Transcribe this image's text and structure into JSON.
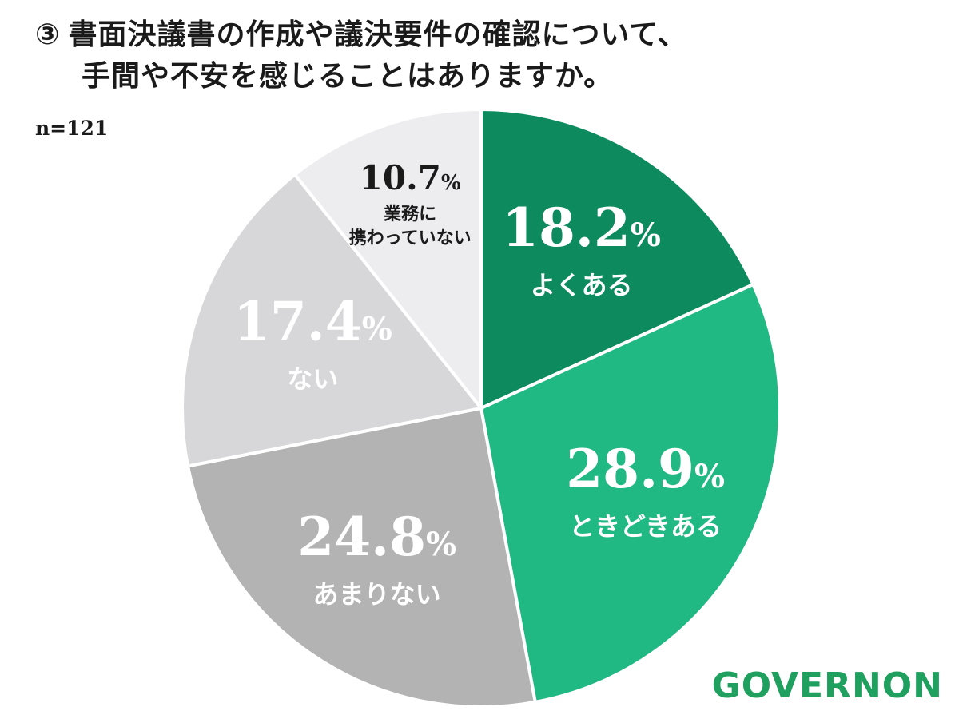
{
  "title": {
    "number": "③",
    "line1": "書面決議書の作成や議決要件の確認について、",
    "line2": "手間や不安を感じることはありますか。"
  },
  "sample_size": "n=121",
  "logo": "GOVERNON",
  "chart_data": {
    "type": "pie",
    "title": "書面決議書の作成や議決要件の確認について、手間や不安を感じることはありますか。",
    "n": 121,
    "start": "12 o'clock",
    "direction": "clockwise",
    "slices": [
      {
        "label": "よくある",
        "value": 18.2,
        "value_label": "18.2",
        "color": "#0e8a5f",
        "text_color": "#ffffff"
      },
      {
        "label": "ときどきある",
        "value": 28.9,
        "value_label": "28.9",
        "color": "#20b883",
        "text_color": "#ffffff"
      },
      {
        "label": "あまりない",
        "value": 24.8,
        "value_label": "24.8",
        "color": "#b3b3b4",
        "text_color": "#ffffff"
      },
      {
        "label": "ない",
        "value": 17.4,
        "value_label": "17.4",
        "color": "#d7d7da",
        "text_color": "#ffffff"
      },
      {
        "label": "業務に\n携わっていない",
        "value": 10.7,
        "value_label": "10.7",
        "color": "#ededf0",
        "text_color": "#1a1a1a"
      }
    ],
    "unit": "%"
  }
}
